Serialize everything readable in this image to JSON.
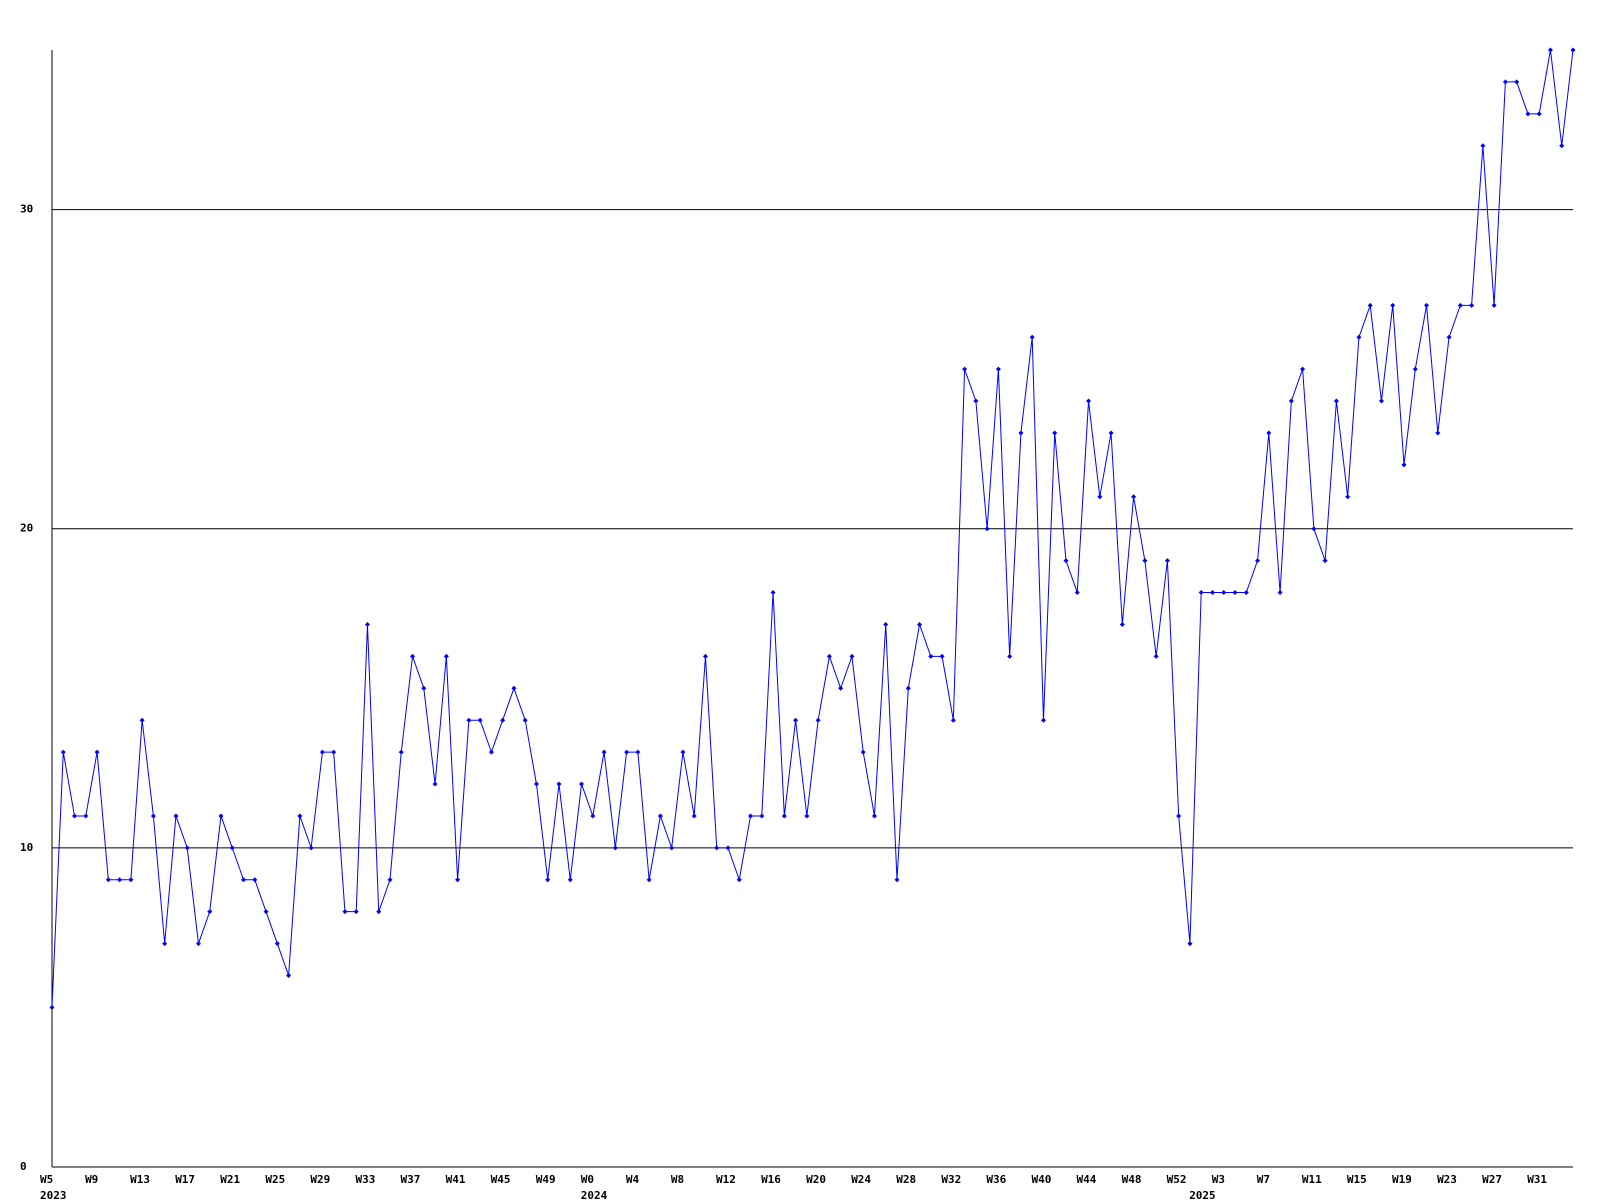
{
  "chart_data": {
    "type": "line",
    "categories": [
      "W5",
      null,
      null,
      null,
      "W9",
      null,
      null,
      null,
      "W13",
      null,
      null,
      null,
      "W17",
      null,
      null,
      null,
      "W21",
      null,
      null,
      null,
      "W25",
      null,
      null,
      null,
      "W29",
      null,
      null,
      null,
      "W33",
      null,
      null,
      null,
      "W37",
      null,
      null,
      null,
      "W41",
      null,
      null,
      null,
      "W45",
      null,
      null,
      null,
      "W49",
      null,
      null,
      null,
      "W0",
      null,
      null,
      null,
      "W4",
      null,
      null,
      null,
      "W8",
      null,
      null,
      null,
      "W12",
      null,
      null,
      null,
      "W16",
      null,
      null,
      null,
      "W20",
      null,
      null,
      null,
      "W24",
      null,
      null,
      null,
      "W28",
      null,
      null,
      null,
      "W32",
      null,
      null,
      null,
      "W36",
      null,
      null,
      null,
      "W40",
      null,
      null,
      null,
      "W44",
      null,
      null,
      null,
      "W48",
      null,
      null,
      null,
      "W52",
      null,
      null,
      null,
      "W3",
      null,
      null,
      null,
      "W7",
      null,
      null,
      null,
      "W11",
      null,
      null,
      null,
      "W15",
      null,
      null,
      null,
      "W19",
      null,
      null,
      null,
      "W23",
      null,
      null,
      null,
      "W27",
      null,
      null,
      null,
      "W31",
      null,
      null,
      null
    ],
    "year_labels": [
      "2023",
      null,
      null,
      null,
      null,
      null,
      null,
      null,
      null,
      null,
      null,
      null,
      null,
      null,
      null,
      null,
      null,
      null,
      null,
      null,
      null,
      null,
      null,
      null,
      null,
      null,
      null,
      null,
      null,
      null,
      null,
      null,
      null,
      null,
      null,
      null,
      null,
      null,
      null,
      null,
      null,
      null,
      null,
      null,
      null,
      null,
      null,
      null,
      "2024",
      null,
      null,
      null,
      null,
      null,
      null,
      null,
      null,
      null,
      null,
      null,
      null,
      null,
      null,
      null,
      null,
      null,
      null,
      null,
      null,
      null,
      null,
      null,
      null,
      null,
      null,
      null,
      null,
      null,
      null,
      null,
      null,
      null,
      null,
      null,
      null,
      null,
      null,
      null,
      null,
      null,
      null,
      null,
      null,
      null,
      null,
      null,
      null,
      null,
      null,
      null,
      null,
      null,
      "2025",
      null,
      null,
      null,
      null,
      null,
      null,
      null,
      null,
      null,
      null,
      null,
      null,
      null,
      null,
      null,
      null,
      null,
      null,
      null,
      null,
      null,
      null,
      null,
      null,
      null,
      null,
      null,
      null,
      null,
      null,
      null,
      null,
      null,
      null
    ],
    "series": [
      {
        "color": "#0000ff",
        "values": [
          5,
          13,
          11,
          11,
          13,
          9,
          9,
          9,
          14,
          11,
          7,
          11,
          10,
          7,
          8,
          11,
          10,
          9,
          9,
          8,
          7,
          6,
          11,
          10,
          13,
          13,
          8,
          8,
          17,
          8,
          9,
          13,
          16,
          15,
          12,
          16,
          9,
          14,
          14,
          13,
          14,
          15,
          14,
          12,
          9,
          12,
          9,
          12,
          11,
          13,
          10,
          13,
          13,
          9,
          11,
          10,
          13,
          11,
          16,
          10,
          10,
          9,
          11,
          11,
          18,
          11,
          14,
          11,
          14,
          16,
          15,
          16,
          13,
          11,
          17,
          9,
          15,
          17,
          16,
          16,
          14,
          25,
          24,
          20,
          25,
          16,
          23,
          26,
          14,
          23,
          19,
          18,
          24,
          21,
          23,
          17,
          21,
          19,
          16,
          19,
          11,
          7,
          18,
          18,
          18,
          18,
          18,
          19,
          23,
          18,
          24,
          25,
          20,
          19,
          24,
          21,
          26,
          27,
          24,
          27,
          22,
          25,
          27,
          23,
          26,
          27,
          27,
          32,
          27,
          34,
          34,
          33,
          33,
          35,
          32,
          35
        ]
      }
    ],
    "ylim": [
      0,
      35
    ],
    "yticks": [
      0,
      10,
      20,
      30
    ],
    "grid": true,
    "grid_color": "#000000"
  }
}
